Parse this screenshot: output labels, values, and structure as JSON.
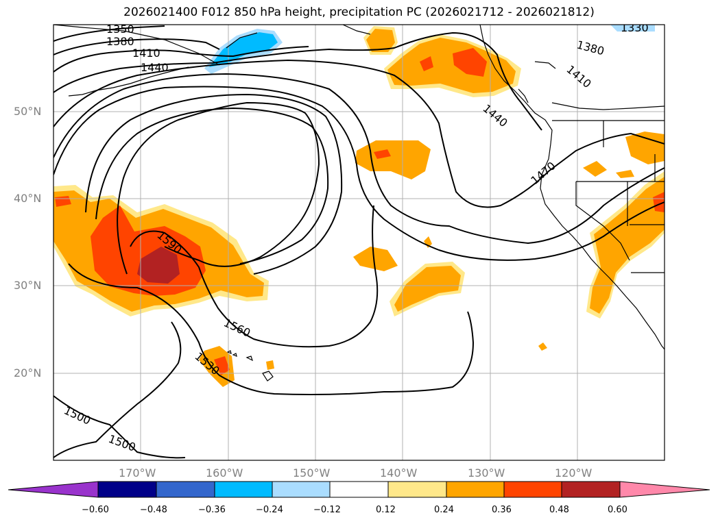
{
  "title": "2026021400 F012 850 hPa height, precipitation PC (2026021712 - 2026021812)",
  "lat_labels": [
    "50°N",
    "40°N",
    "30°N",
    "20°N"
  ],
  "lon_labels": [
    "170°W",
    "160°W",
    "150°W",
    "140°W",
    "130°W",
    "120°W"
  ],
  "contour_labels": [
    "1350",
    "1380",
    "1410",
    "1440",
    "1590",
    "1560",
    "1530",
    "1500",
    "1500",
    "1330",
    "1380",
    "1410",
    "1440",
    "1470"
  ],
  "colorbar": {
    "ticks": [
      "−0.60",
      "−0.48",
      "−0.36",
      "−0.24",
      "−0.12",
      "0.12",
      "0.24",
      "0.36",
      "0.48",
      "0.60"
    ],
    "colors": [
      "#9933cc",
      "#000088",
      "#3366cc",
      "#00bbff",
      "#aaddff",
      "#ffffff",
      "#ffe88a",
      "#ffa500",
      "#ff4400",
      "#b22222",
      "#ff88aa"
    ]
  },
  "fill_colors": {
    "pos_1": "#ffe88a",
    "pos_2": "#ffa500",
    "pos_3": "#ff4400",
    "pos_4": "#b22222",
    "neg_1": "#aaddff",
    "neg_2": "#00bbff"
  }
}
